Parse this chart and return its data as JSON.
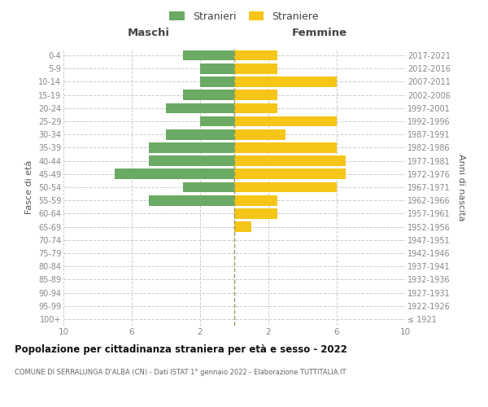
{
  "age_groups": [
    "100+",
    "95-99",
    "90-94",
    "85-89",
    "80-84",
    "75-79",
    "70-74",
    "65-69",
    "60-64",
    "55-59",
    "50-54",
    "45-49",
    "40-44",
    "35-39",
    "30-34",
    "25-29",
    "20-24",
    "15-19",
    "10-14",
    "5-9",
    "0-4"
  ],
  "birth_years": [
    "≤ 1921",
    "1922-1926",
    "1927-1931",
    "1932-1936",
    "1937-1941",
    "1942-1946",
    "1947-1951",
    "1952-1956",
    "1957-1961",
    "1962-1966",
    "1967-1971",
    "1972-1976",
    "1977-1981",
    "1982-1986",
    "1987-1991",
    "1992-1996",
    "1997-2001",
    "2002-2006",
    "2007-2011",
    "2012-2016",
    "2017-2021"
  ],
  "maschi": [
    0,
    0,
    0,
    0,
    0,
    0,
    0,
    0,
    0,
    5,
    3,
    7,
    5,
    5,
    4,
    2,
    4,
    3,
    2,
    2,
    3
  ],
  "femmine": [
    0,
    0,
    0,
    0,
    0,
    0,
    0,
    1,
    2.5,
    2.5,
    6,
    6.5,
    6.5,
    6,
    3,
    6,
    2.5,
    2.5,
    6,
    2.5,
    2.5
  ],
  "male_color": "#6aaa64",
  "female_color": "#f5c518",
  "title": "Popolazione per cittadinanza straniera per età e sesso - 2022",
  "subtitle": "COMUNE DI SERRALUNGA D'ALBA (CN) - Dati ISTAT 1° gennaio 2022 - Elaborazione TUTTITALIA.IT",
  "label_maschi": "Maschi",
  "label_femmine": "Femmine",
  "ylabel_left": "Fasce di età",
  "ylabel_right": "Anni di nascita",
  "legend_m": "Stranieri",
  "legend_f": "Straniere",
  "xlim": 10,
  "xticks_pos": [
    -10,
    -6,
    -2,
    2,
    6,
    10
  ],
  "xticks_lab": [
    "10",
    "6",
    "2",
    "2",
    "6",
    "10"
  ],
  "bg_color": "#ffffff",
  "grid_color": "#cccccc",
  "center_line_color": "#999966"
}
